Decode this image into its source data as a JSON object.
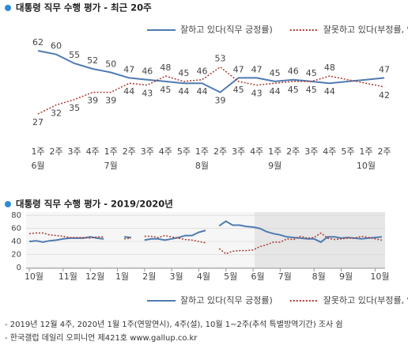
{
  "chart_data": [
    {
      "type": "line",
      "title": "대통령 직무 수행 평가 - 최근 20주",
      "categories": [
        "1주",
        "2주",
        "3주",
        "4주",
        "1주",
        "2주",
        "3주",
        "4주",
        "5주",
        "1주",
        "2주",
        "3주",
        "4주",
        "1주",
        "2주",
        "3주",
        "4주",
        "5주",
        "1주",
        "2주"
      ],
      "months": [
        "6월",
        null,
        null,
        null,
        "7월",
        null,
        null,
        null,
        null,
        "8월",
        null,
        null,
        null,
        "9월",
        null,
        null,
        null,
        null,
        "10월",
        null
      ],
      "ylim": [
        20,
        66
      ],
      "series": [
        {
          "name": "잘하고 있다(직무 긍정률)",
          "color": "#4f7bb0",
          "dash": "solid",
          "values": [
            62,
            60,
            55,
            52,
            50,
            47,
            46,
            45,
            44,
            44,
            39,
            47,
            47,
            45,
            46,
            45,
            44,
            45,
            46,
            47
          ],
          "value_labels": [
            "62",
            "60",
            "55",
            "52",
            "50",
            "47",
            "46",
            "45",
            "44",
            "44",
            "39",
            "47",
            "47",
            "45",
            "46",
            "45",
            "44",
            null,
            null,
            "47"
          ]
        },
        {
          "name": "잘못하고 있다(부정률, %)",
          "color": "#a83a32",
          "dash": "dotted",
          "values": [
            27,
            32,
            35,
            39,
            39,
            44,
            43,
            48,
            45,
            46,
            53,
            45,
            43,
            44,
            45,
            45,
            48,
            46,
            44,
            42
          ],
          "value_labels": [
            "27",
            "32",
            "35",
            "39",
            "39",
            "44",
            "43",
            "48",
            "45",
            "46",
            "53",
            "45",
            "43",
            "44",
            "45",
            "45",
            "48",
            null,
            null,
            "42"
          ]
        }
      ]
    },
    {
      "type": "line",
      "title": "대통령 직무 수행 평가 - 2019/2020년",
      "categories": [
        "10월",
        null,
        null,
        null,
        null,
        "11월",
        null,
        null,
        null,
        "12월",
        null,
        null,
        null,
        "1월",
        null,
        null,
        null,
        "2월",
        null,
        null,
        null,
        "3월",
        null,
        null,
        null,
        "4월",
        null,
        null,
        null,
        "5월",
        null,
        null,
        null,
        "6월",
        null,
        null,
        null,
        "7월",
        null,
        null,
        null,
        null,
        "8월",
        null,
        null,
        null,
        "9월",
        null,
        null,
        null,
        null,
        "10월",
        null
      ],
      "ylim": [
        0,
        85
      ],
      "yticks": [
        0,
        20,
        40,
        60,
        80
      ],
      "grid": true,
      "series": [
        {
          "name": "잘하고 있다(직무 긍정률)",
          "color": "#4f7bb0",
          "dash": "solid",
          "values": [
            40,
            41,
            39,
            41,
            42,
            44,
            45,
            45,
            45,
            47,
            45,
            44,
            null,
            null,
            47,
            46,
            null,
            42,
            44,
            44,
            42,
            44,
            46,
            49,
            49,
            54,
            57,
            null,
            64,
            71,
            65,
            65,
            63,
            62,
            60,
            55,
            52,
            50,
            47,
            46,
            45,
            44,
            44,
            39,
            47,
            47,
            45,
            46,
            45,
            44,
            45,
            46,
            47
          ]
        },
        {
          "name": "잘못하고 있다(부정률, %)",
          "color": "#a83a32",
          "dash": "dotted",
          "values": [
            52,
            53,
            53,
            50,
            49,
            48,
            46,
            46,
            46,
            45,
            47,
            47,
            null,
            null,
            44,
            45,
            null,
            48,
            48,
            46,
            49,
            47,
            45,
            43,
            42,
            40,
            38,
            null,
            29,
            21,
            25,
            26,
            26,
            27,
            32,
            35,
            39,
            39,
            44,
            43,
            48,
            45,
            46,
            53,
            45,
            43,
            44,
            45,
            45,
            48,
            46,
            44,
            42
          ]
        }
      ]
    }
  ],
  "footnotes": [
    "- 2019년 12월 4주, 2020년 1월 1주(연말연시), 4주(설), 10월 1~2주(추석 특별방역기간) 조사 쉼",
    "- 한국갤럽 데일리 오피니언 제421호 www.gallup.co.kr"
  ]
}
